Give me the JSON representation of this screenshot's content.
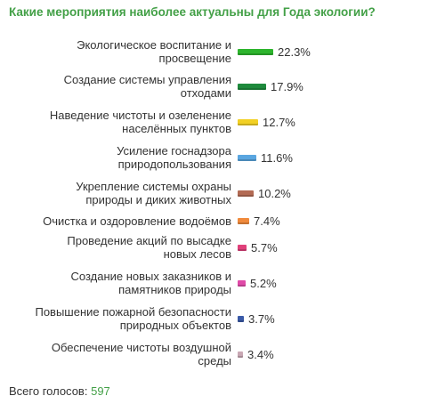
{
  "header": {
    "title": "Какие мероприятия наиболее актуальны для Года экологии?"
  },
  "footer": {
    "total_label": "Всего голосов:",
    "total_count": "597"
  },
  "chart_data": {
    "type": "bar",
    "orientation": "horizontal",
    "title": "Какие мероприятия наиболее актуальны для Года экологии?",
    "value_unit": "%",
    "categories": [
      [
        "Экологическое воспитание и",
        "просвещение"
      ],
      [
        "Создание системы управления",
        "отходами"
      ],
      [
        "Наведение чистоты и озеленение",
        "населённых пунктов"
      ],
      [
        "Усиление госнадзора",
        "природопользования"
      ],
      [
        "Укрепление системы охраны",
        "природы и диких животных"
      ],
      [
        "Очистка и оздоровление водоёмов"
      ],
      [
        "Проведение акций по высадке",
        "новых лесов"
      ],
      [
        "Создание новых заказников и",
        "памятников природы"
      ],
      [
        "Повышение пожарной безопасности",
        "природных объектов"
      ],
      [
        "Обеспечение чистоты воздушной",
        "среды"
      ]
    ],
    "values": [
      22.3,
      17.9,
      12.7,
      11.6,
      10.2,
      7.4,
      5.7,
      5.2,
      3.7,
      3.4
    ],
    "value_labels": [
      "22.3%",
      "17.9%",
      "12.7%",
      "11.6%",
      "10.2%",
      "7.4%",
      "5.7%",
      "5.2%",
      "3.7%",
      "3.4%"
    ],
    "colors": [
      "#2db52d",
      "#1e8a3c",
      "#f2d024",
      "#5aa6e0",
      "#b36b54",
      "#f08a3c",
      "#e0407a",
      "#e04aa8",
      "#3a5aa8",
      "#c9a8b4"
    ]
  }
}
